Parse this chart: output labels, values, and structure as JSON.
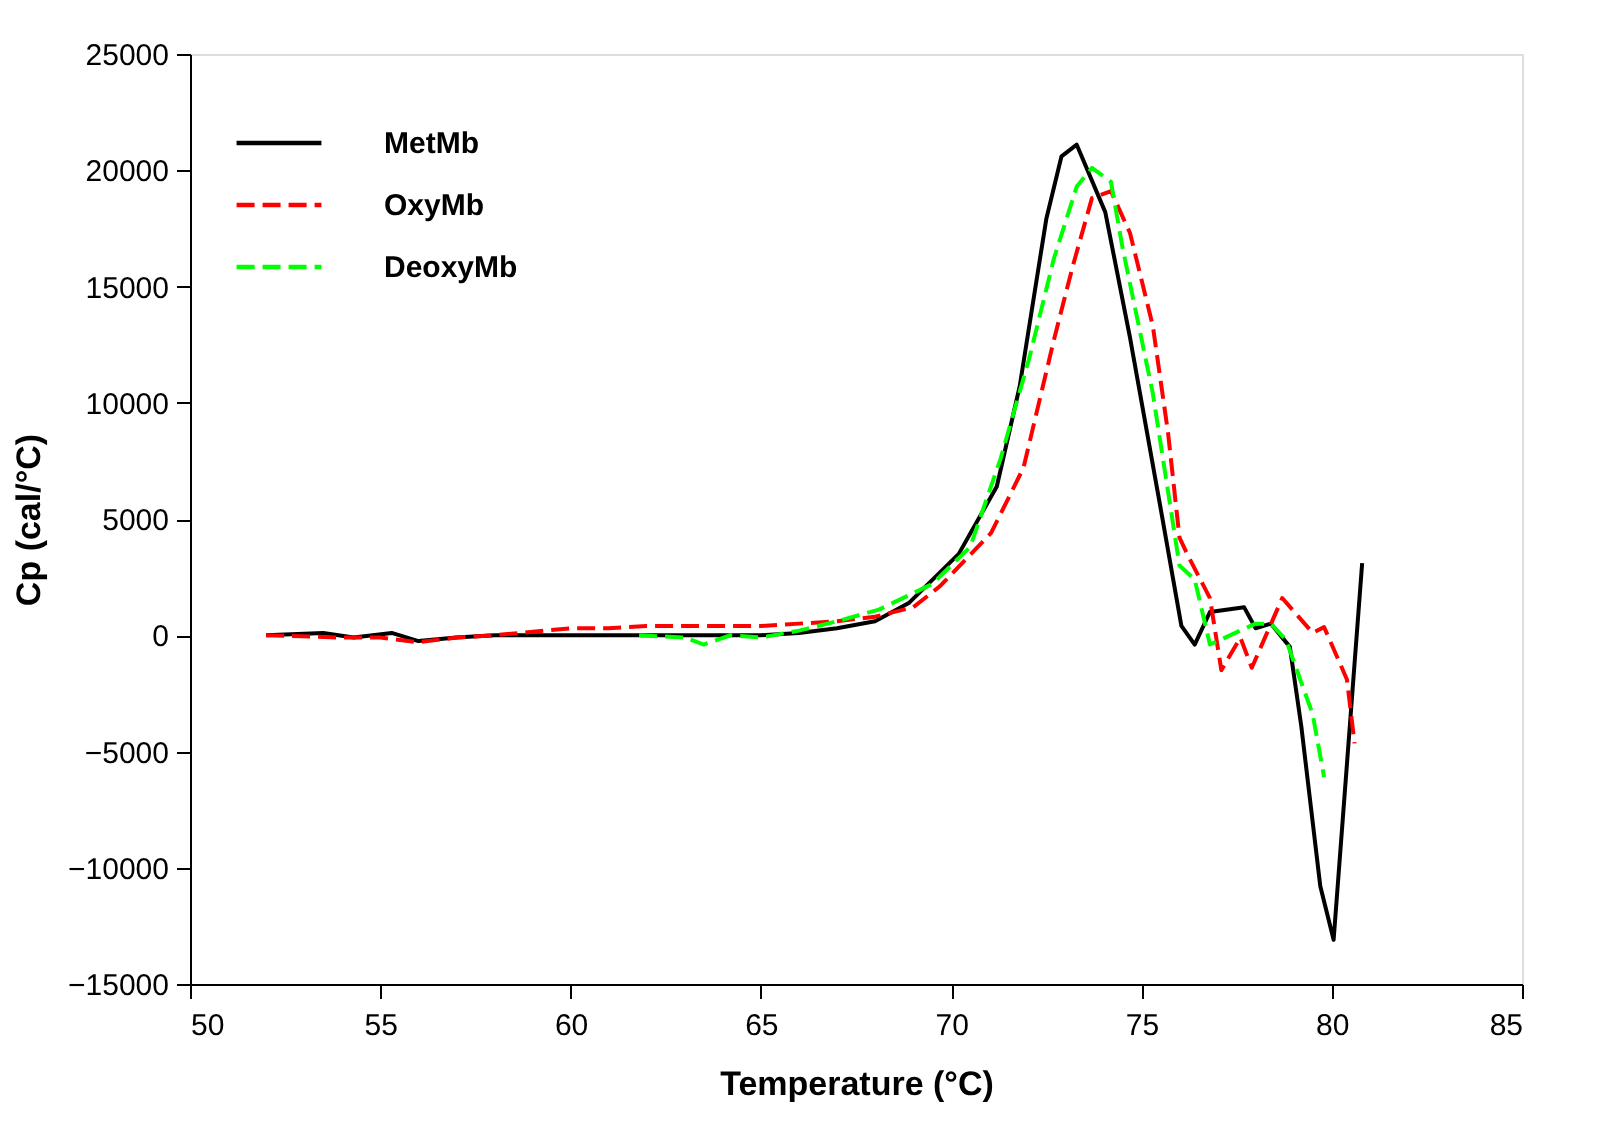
{
  "chart_data": {
    "type": "line",
    "xlabel": "Temperature (°C)",
    "ylabel": "Cp (cal/°C)",
    "xlim": [
      50,
      85
    ],
    "xticks": [
      50,
      55,
      60,
      65,
      70,
      75,
      80,
      85
    ],
    "ylim": [
      -15000,
      25000
    ],
    "yticks": [
      -15000,
      -10000,
      -5000,
      0,
      5000,
      10000,
      15000,
      20000,
      25000
    ],
    "grid": false,
    "legend": "top left",
    "marker": "none",
    "series": [
      {
        "name": "MetMb",
        "color": "#000000",
        "line_style": "solid",
        "x": [
          52,
          53.5,
          54.3,
          55.3,
          56,
          57,
          58,
          60,
          62,
          65,
          66,
          67,
          68,
          68.9,
          70.2,
          71.2,
          71.8,
          72.5,
          72.9,
          73.3,
          74.05,
          74.7,
          75.5,
          76.05,
          76.4,
          76.8,
          77.7,
          78.0,
          78.4,
          78.9,
          79.2,
          79.7,
          80.05,
          80.8
        ],
        "values": [
          0,
          100,
          -100,
          100,
          -250,
          -100,
          0,
          0,
          0,
          0,
          100,
          300,
          600,
          1400,
          3500,
          6400,
          10700,
          17900,
          20600,
          21100,
          18200,
          12800,
          5500,
          400,
          -400,
          1000,
          1200,
          300,
          500,
          -500,
          -3900,
          -10800,
          -13100,
          3100
        ]
      },
      {
        "name": "OxyMb",
        "color": "#ff0000",
        "line_style": "dashed",
        "x": [
          52,
          54,
          55,
          56,
          57,
          58,
          60,
          61,
          62,
          64,
          65,
          66,
          67,
          68,
          69,
          69.7,
          71.05,
          71.9,
          72.7,
          73.2,
          73.7,
          74.2,
          74.7,
          75.3,
          75.7,
          76.0,
          76.2,
          76.8,
          77.1,
          77.6,
          77.9,
          78.7,
          79.5,
          79.8,
          80.4,
          80.6
        ],
        "values": [
          0,
          -100,
          -100,
          -300,
          -100,
          0,
          300,
          300,
          400,
          400,
          400,
          500,
          600,
          800,
          1200,
          2100,
          4400,
          7200,
          12700,
          15900,
          18800,
          19100,
          17300,
          13300,
          8700,
          4200,
          3500,
          1600,
          -1500,
          -100,
          -1400,
          1600,
          100,
          350,
          -1900,
          -4650
        ]
      },
      {
        "name": "DeoxyMb",
        "color": "#00ff00",
        "line_style": "dashed",
        "x": [
          61.8,
          63,
          63.5,
          64.2,
          65,
          66,
          67,
          68.1,
          69.5,
          70.5,
          71.3,
          72.05,
          72.7,
          73.3,
          73.7,
          74.2,
          74.5,
          75.3,
          76.0,
          76.4,
          76.8,
          77.2,
          78.0,
          78.4,
          78.8,
          79.5,
          79.8
        ],
        "values": [
          0,
          -100,
          -400,
          0,
          -100,
          200,
          600,
          1100,
          2200,
          3800,
          7600,
          11900,
          16200,
          19300,
          20100,
          19500,
          16700,
          10400,
          3000,
          2400,
          -400,
          -100,
          500,
          500,
          -200,
          -3400,
          -6100
        ]
      }
    ]
  }
}
